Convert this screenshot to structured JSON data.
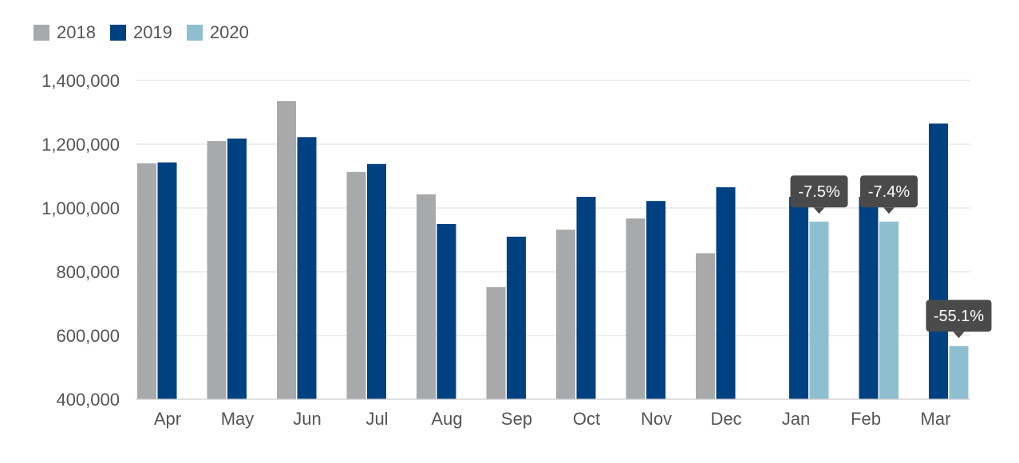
{
  "chart_data": {
    "type": "bar",
    "categories": [
      "Apr",
      "May",
      "Jun",
      "Jul",
      "Aug",
      "Sep",
      "Oct",
      "Nov",
      "Dec",
      "Jan",
      "Feb",
      "Mar"
    ],
    "series": [
      {
        "name": "2018",
        "color": "#a8a9ab",
        "values": [
          1140000,
          1210000,
          1335000,
          1113000,
          1043000,
          752000,
          932000,
          967000,
          858000,
          null,
          null,
          null
        ]
      },
      {
        "name": "2019",
        "color": "#004182",
        "values": [
          1143000,
          1218000,
          1222000,
          1138000,
          950000,
          910000,
          1035000,
          1022000,
          1065000,
          1035000,
          1035000,
          1265000
        ]
      },
      {
        "name": "2020",
        "color": "#8ebfd0",
        "values": [
          null,
          null,
          null,
          null,
          null,
          null,
          null,
          null,
          null,
          957000,
          957000,
          567000
        ]
      }
    ],
    "annotations": [
      {
        "category": "Jan",
        "series": "2020",
        "text": "-7.5%"
      },
      {
        "category": "Feb",
        "series": "2020",
        "text": "-7.4%"
      },
      {
        "category": "Mar",
        "series": "2020",
        "text": "-55.1%"
      }
    ],
    "yticks": [
      {
        "value": 400000,
        "label": "400,000"
      },
      {
        "value": 600000,
        "label": "600,000"
      },
      {
        "value": 800000,
        "label": "800,000"
      },
      {
        "value": 1000000,
        "label": "1,000,000"
      },
      {
        "value": 1200000,
        "label": "1,200,000"
      },
      {
        "value": 1400000,
        "label": "1,400,000"
      }
    ],
    "ylim": [
      400000,
      1400000
    ],
    "grid": true,
    "legend_position": "top-left",
    "annotation_color": "#4a4a4a"
  }
}
